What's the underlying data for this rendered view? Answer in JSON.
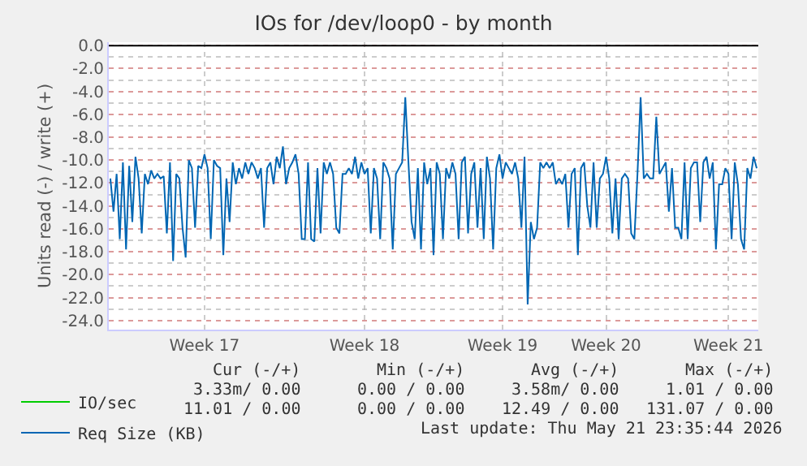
{
  "chart_data": {
    "type": "line",
    "title": "IOs for /dev/loop0 - by month",
    "ylabel": "Units read (-) / write (+)",
    "ylim": [
      -24.8,
      0.3
    ],
    "categories": [
      null,
      null,
      null,
      null,
      null,
      null,
      null,
      null,
      null,
      null,
      null,
      null,
      null,
      null,
      null,
      null,
      null,
      null,
      null,
      null,
      null,
      null,
      null,
      null,
      null,
      null,
      null,
      null,
      null,
      null,
      "Week 17",
      null,
      null,
      null,
      null,
      null,
      null,
      null,
      null,
      null,
      null,
      null,
      null,
      null,
      null,
      null,
      null,
      null,
      null,
      null,
      null,
      null,
      null,
      null,
      null,
      null,
      null,
      null,
      null,
      null,
      null,
      null,
      null,
      null,
      null,
      null,
      null,
      null,
      null,
      null,
      null,
      null,
      null,
      null,
      null,
      null,
      null,
      null,
      null,
      null,
      null,
      "Week 18",
      null,
      null,
      null,
      null,
      null,
      null,
      null,
      null,
      null,
      null,
      null,
      null,
      null,
      null,
      null,
      null,
      null,
      null,
      null,
      null,
      null,
      null,
      null,
      null,
      null,
      null,
      null,
      null,
      null,
      null,
      null,
      null,
      null,
      null,
      null,
      null,
      null,
      null,
      null,
      null,
      null,
      null,
      null,
      "Week 19",
      null,
      null,
      null,
      null,
      null,
      null,
      null,
      null,
      null,
      null,
      null,
      null,
      null,
      null,
      null,
      null,
      null,
      null,
      null,
      null,
      null,
      null,
      null,
      null,
      null,
      null,
      null,
      null,
      null,
      null,
      null,
      null,
      "Week 20",
      null,
      null,
      null,
      null,
      null,
      null,
      null,
      null,
      null,
      null,
      null,
      null,
      null,
      null,
      null,
      null,
      null,
      null,
      null,
      null,
      null,
      null,
      null,
      null,
      null,
      null,
      null,
      null,
      null,
      null,
      null,
      null,
      null,
      null,
      null,
      null,
      null,
      null,
      "Week 21",
      null,
      null,
      null,
      null,
      null,
      null,
      null,
      null,
      null
    ],
    "yticks": [
      {
        "value": 0,
        "label": "0.0"
      },
      {
        "value": -2,
        "label": "-2.0"
      },
      {
        "value": -4,
        "label": "-4.0"
      },
      {
        "value": -6,
        "label": "-6.0"
      },
      {
        "value": -8,
        "label": "-8.0"
      },
      {
        "value": -10,
        "label": "-10.0"
      },
      {
        "value": -12,
        "label": "-12.0"
      },
      {
        "value": -14,
        "label": "-14.0"
      },
      {
        "value": -16,
        "label": "-16.0"
      },
      {
        "value": -18,
        "label": "-18.0"
      },
      {
        "value": -20,
        "label": "-20.0"
      },
      {
        "value": -22,
        "label": "-22.0"
      },
      {
        "value": -24,
        "label": "-24.0"
      }
    ],
    "grid": true,
    "legend": "bottom left",
    "marker": "none",
    "line_style": "solid",
    "ref_lines": [
      {
        "axis": "y",
        "value": 0,
        "color": "#000000"
      }
    ],
    "series": [
      {
        "name": "IO/sec",
        "color": "#00cc00",
        "values": [
          null,
          null,
          null,
          null,
          null,
          null,
          null,
          null,
          null,
          null,
          null,
          null,
          null,
          null,
          null,
          null,
          null,
          null,
          null,
          null,
          null,
          null,
          null,
          null,
          null,
          null,
          null,
          null,
          null,
          null,
          null,
          null,
          null,
          null,
          null,
          null,
          null,
          null,
          null,
          null,
          null,
          null,
          null,
          null,
          null,
          null,
          null,
          null,
          null,
          null,
          null,
          null,
          null,
          null,
          null,
          null,
          null,
          null,
          null,
          null,
          null,
          null,
          null,
          null,
          null,
          null,
          null,
          null,
          null,
          null,
          null,
          null,
          null,
          null,
          null,
          null,
          null,
          null,
          null,
          null,
          null,
          null,
          null,
          null,
          null,
          null,
          null,
          null,
          null,
          null,
          null,
          null,
          null,
          null,
          null,
          null,
          null,
          null,
          null,
          null,
          null,
          null,
          null,
          null,
          null,
          null,
          null,
          null,
          null,
          null,
          null,
          null,
          null,
          null,
          null,
          null,
          null,
          null,
          null,
          null,
          null,
          null,
          null,
          null,
          null,
          null,
          null,
          null,
          null,
          null,
          null,
          null,
          null,
          null,
          null,
          null,
          null,
          null,
          null,
          null,
          null,
          null,
          null,
          null,
          null,
          null,
          null,
          null,
          null,
          null,
          null,
          null,
          null,
          null,
          null,
          null,
          null,
          null,
          null,
          null,
          null,
          null,
          null,
          null,
          null,
          null,
          null,
          null,
          null,
          null,
          null,
          null,
          null,
          null,
          null,
          null,
          null,
          null,
          null,
          null,
          null,
          null,
          null,
          null,
          null,
          null,
          null,
          null,
          null,
          null,
          null,
          null,
          null,
          null,
          null,
          null,
          null,
          null,
          null,
          null,
          null,
          null,
          null,
          null,
          null,
          null,
          null
        ]
      },
      {
        "name": "Req Size (KB)",
        "color": "#0066b3",
        "values": [
          -11.6,
          -14.5,
          -11.2,
          -16.9,
          -10.2,
          -17.8,
          -10.5,
          -15.4,
          -9.7,
          -11.6,
          -16.4,
          -11.2,
          -12.1,
          -10.9,
          -11.6,
          -11.2,
          -11.6,
          -11.4,
          -16.4,
          -10.2,
          -18.8,
          -11.2,
          -11.6,
          -15.9,
          -18.5,
          -10.0,
          -10.7,
          -15.9,
          -10.5,
          -10.7,
          -9.5,
          -10.7,
          -16.9,
          -10.0,
          -10.5,
          -10.7,
          -18.3,
          -11.6,
          -15.4,
          -10.2,
          -12.1,
          -10.7,
          -11.6,
          -10.2,
          -11.2,
          -10.2,
          -10.7,
          -11.6,
          -10.7,
          -15.9,
          -10.7,
          -10.2,
          -12.1,
          -9.7,
          -10.7,
          -8.8,
          -12.1,
          -10.7,
          -10.2,
          -9.5,
          -11.2,
          -16.9,
          -16.9,
          -10.2,
          -16.9,
          -17.1,
          -10.7,
          -16.4,
          -10.2,
          -11.2,
          -10.2,
          -11.2,
          -15.9,
          -16.4,
          -11.2,
          -11.2,
          -10.7,
          -11.2,
          -9.7,
          -11.6,
          -10.2,
          -11.2,
          -10.7,
          -16.4,
          -10.7,
          -11.6,
          -16.9,
          -10.2,
          -10.7,
          -11.6,
          -17.8,
          -11.2,
          -10.7,
          -10.2,
          -4.5,
          -10.2,
          -15.4,
          -16.9,
          -10.7,
          -17.8,
          -10.2,
          -12.1,
          -10.7,
          -18.3,
          -10.2,
          -11.2,
          -16.9,
          -10.7,
          -11.6,
          -10.2,
          -11.2,
          -16.9,
          -10.2,
          -9.7,
          -16.4,
          -11.2,
          -10.2,
          -15.9,
          -10.7,
          -16.9,
          -9.7,
          -11.6,
          -17.8,
          -10.7,
          -9.5,
          -11.6,
          -10.2,
          -10.7,
          -11.2,
          -10.2,
          -11.6,
          -15.9,
          -9.7,
          -22.6,
          -15.4,
          -16.9,
          -15.9,
          -10.2,
          -10.7,
          -10.2,
          -10.7,
          -10.2,
          -12.1,
          -11.6,
          -12.1,
          -11.2,
          -15.9,
          -11.2,
          -10.7,
          -18.3,
          -10.7,
          -10.2,
          -14.0,
          -15.9,
          -10.2,
          -15.9,
          -11.6,
          -11.2,
          -9.7,
          -11.6,
          -16.4,
          -11.6,
          -16.9,
          -11.6,
          -11.2,
          -11.6,
          -16.4,
          -16.9,
          -11.2,
          -4.5,
          -11.6,
          -11.2,
          -11.6,
          -11.6,
          -6.2,
          -11.2,
          -10.7,
          -10.2,
          -14.5,
          -10.7,
          -15.9,
          -15.9,
          -16.9,
          -10.2,
          -16.9,
          -10.7,
          -10.2,
          -10.2,
          -15.4,
          -10.2,
          -9.7,
          -11.6,
          -10.2,
          -17.8,
          -12.1,
          -12.1,
          -10.7,
          -11.2,
          -16.9,
          -10.2,
          -12.1,
          -16.9,
          -17.8,
          -10.7,
          -11.6,
          -9.7,
          -10.7
        ]
      }
    ],
    "annotations": [
      "Cur (-/+)",
      "Min (-/+)",
      "Avg (-/+)",
      "Max (-/+)",
      "3.33m/ 0.00",
      "0.00 / 0.00",
      "3.58m/ 0.00",
      "1.01 / 0.00",
      "11.01 / 0.00",
      "0.00 / 0.00",
      "12.49 / 0.00",
      "131.07 / 0.00",
      "Last update: Thu May 21 23:35:44 2026"
    ]
  }
}
